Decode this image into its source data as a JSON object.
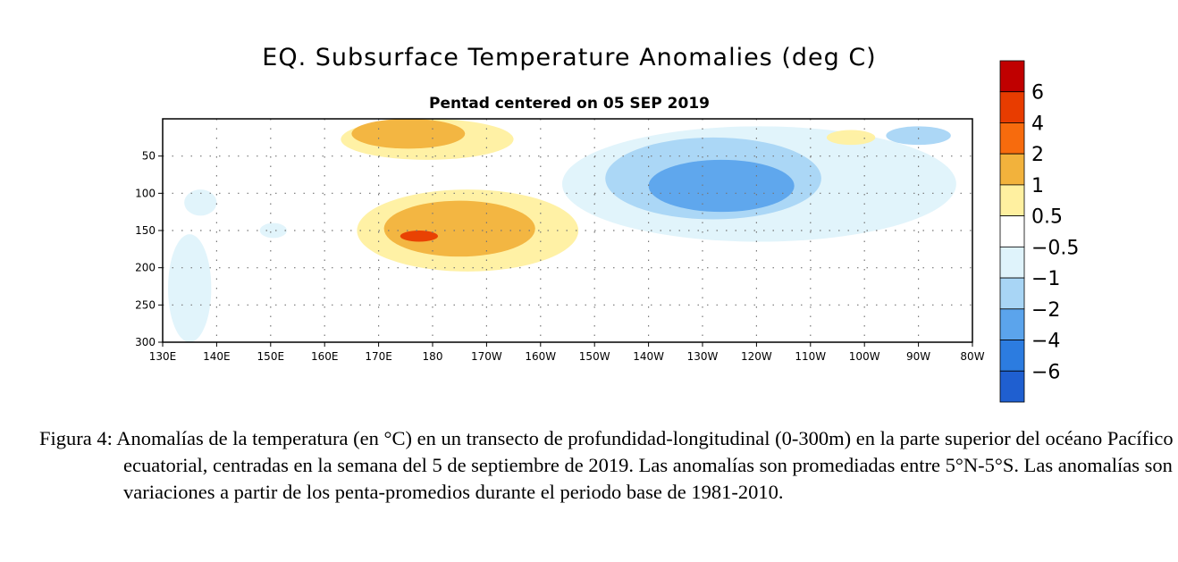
{
  "chart_data": {
    "type": "heatmap",
    "title": "EQ. Subsurface Temperature Anomalies (deg C)",
    "subtitle": "Pentad centered on 05 SEP 2019",
    "x_ticks": [
      "130E",
      "140E",
      "150E",
      "160E",
      "170E",
      "180",
      "170W",
      "160W",
      "150W",
      "140W",
      "130W",
      "120W",
      "110W",
      "100W",
      "90W",
      "80W"
    ],
    "y_ticks": [
      "50",
      "100",
      "150",
      "200",
      "250",
      "300"
    ],
    "xlim_deg_east": [
      130,
      280
    ],
    "ylim_depth_m": [
      300,
      0
    ],
    "grid": "dotted",
    "colorbar": {
      "labels": [
        "6",
        "4",
        "2",
        "1",
        "0.5",
        "−0.5",
        "−1",
        "−2",
        "−4",
        "−6"
      ],
      "colors": [
        "#c00000",
        "#e83c00",
        "#f76b0d",
        "#f2b23c",
        "#fff0a0",
        "#ffffff",
        "#dff3fb",
        "#a8d5f5",
        "#5ba4ec",
        "#2c7ce0",
        "#1f5fd0"
      ]
    },
    "anomaly_regions": [
      {
        "level": 1,
        "value_range": [
          0.5,
          1
        ],
        "lon_range": [
          163,
          195
        ],
        "depth_range": [
          0,
          55
        ]
      },
      {
        "level": 2,
        "value_range": [
          1,
          2
        ],
        "lon_range": [
          165,
          186
        ],
        "depth_range": [
          0,
          40
        ]
      },
      {
        "level": 1,
        "value_range": [
          0.5,
          1
        ],
        "lon_range": [
          166,
          207
        ],
        "depth_range": [
          95,
          205
        ]
      },
      {
        "level": 2,
        "value_range": [
          1,
          2
        ],
        "lon_range": [
          171,
          199
        ],
        "depth_range": [
          110,
          185
        ]
      },
      {
        "level": 4,
        "value_range": [
          2,
          4
        ],
        "lon_range": [
          174,
          181
        ],
        "depth_range": [
          150,
          165
        ]
      },
      {
        "level": -1,
        "value_range": [
          -1,
          -0.5
        ],
        "lon_range": [
          204,
          277
        ],
        "depth_range": [
          10,
          165
        ]
      },
      {
        "level": -2,
        "value_range": [
          -2,
          -1
        ],
        "lon_range": [
          212,
          252
        ],
        "depth_range": [
          25,
          135
        ]
      },
      {
        "level": -4,
        "value_range": [
          -4,
          -2
        ],
        "lon_range": [
          220,
          247
        ],
        "depth_range": [
          55,
          125
        ]
      },
      {
        "level": 1,
        "value_range": [
          0.5,
          1
        ],
        "lon_range": [
          253,
          262
        ],
        "depth_range": [
          15,
          35
        ]
      },
      {
        "level": -2,
        "value_range": [
          -2,
          -1
        ],
        "lon_range": [
          264,
          276
        ],
        "depth_range": [
          10,
          35
        ]
      },
      {
        "level": -1,
        "value_range": [
          -1,
          -0.5
        ],
        "lon_range": [
          131,
          139
        ],
        "depth_range": [
          155,
          300
        ]
      },
      {
        "level": -1,
        "value_range": [
          -1,
          -0.5
        ],
        "lon_range": [
          134,
          140
        ],
        "depth_range": [
          95,
          130
        ]
      },
      {
        "level": -1,
        "value_range": [
          -1,
          -0.5
        ],
        "lon_range": [
          148,
          153
        ],
        "depth_range": [
          140,
          160
        ]
      }
    ]
  },
  "caption": {
    "text": "Figura 4: Anomalías de la temperatura (en °C) en un transecto de profundidad-longitudinal (0-300m) en la parte superior del océano Pacífico ecuatorial, centradas en la semana del 5 de septiembre de 2019. Las anomalías son promediadas entre 5°N-5°S. Las anomalías son variaciones a partir de los penta-promedios durante el periodo base de 1981-2010."
  }
}
